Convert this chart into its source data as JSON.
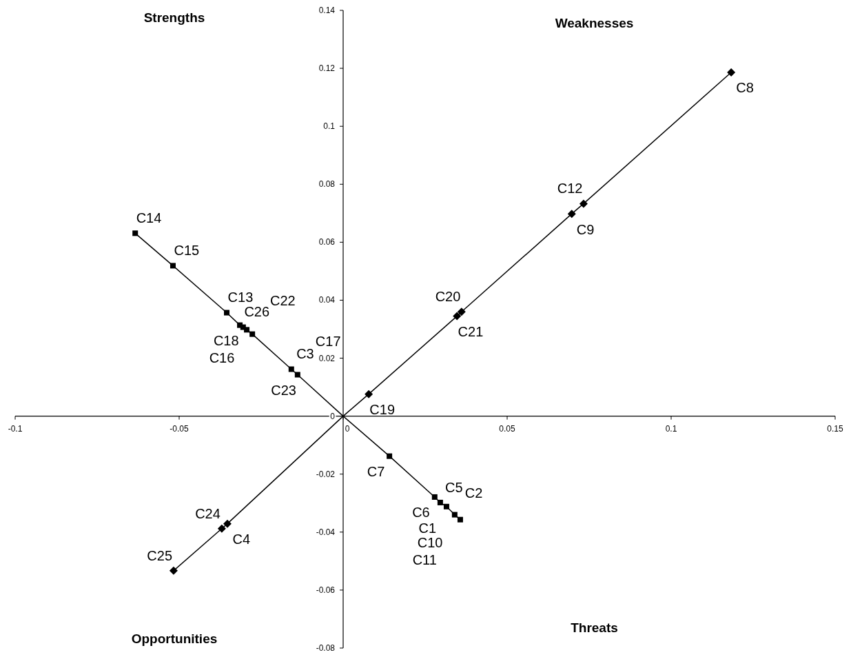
{
  "chart_data": {
    "type": "line",
    "xlim": [
      -0.1,
      0.15
    ],
    "ylim": [
      -0.08,
      0.14
    ],
    "xticks": [
      -0.1,
      -0.05,
      0,
      0.05,
      0.1,
      0.15
    ],
    "yticks": [
      -0.08,
      -0.06,
      -0.04,
      -0.02,
      0,
      0.02,
      0.04,
      0.06,
      0.08,
      0.1,
      0.12,
      0.14
    ],
    "grid": false,
    "line_style": "solid",
    "series": [
      {
        "color": "#000000",
        "marker": "square",
        "x": [
          -0.0634,
          -0.0519,
          -0.0355,
          -0.0315,
          -0.0305,
          -0.0294,
          -0.0277,
          -0.0158,
          -0.0139,
          0,
          0.0141,
          0.0279,
          0.0296,
          0.0315,
          0.034,
          0.0357
        ],
        "values": [
          0.0631,
          0.0519,
          0.0357,
          0.0314,
          0.0307,
          0.0298,
          0.0283,
          0.0162,
          0.0143,
          0,
          -0.0138,
          -0.0279,
          -0.0298,
          -0.0312,
          -0.034,
          -0.0357
        ]
      },
      {
        "color": "#000000",
        "marker": "diamond",
        "x": [
          -0.0517,
          -0.037,
          -0.0353,
          0,
          0.0078,
          0.0347,
          0.0361,
          0.0697,
          0.0733,
          0.1183
        ],
        "values": [
          -0.0533,
          -0.0388,
          -0.0371,
          0,
          0.0076,
          0.0345,
          0.036,
          0.0698,
          0.0733,
          0.1186
        ]
      }
    ],
    "annotations": [
      "Strengths",
      "Weaknesses",
      "Opportunities",
      "Threats",
      {
        "text": "C14",
        "x": -0.0634,
        "y": 0.0631
      },
      {
        "text": "C15",
        "x": -0.0519,
        "y": 0.0519
      },
      {
        "text": "C13",
        "x": -0.0355,
        "y": 0.0357
      },
      {
        "text": "C18",
        "x": -0.0315,
        "y": 0.0314
      },
      {
        "text": "C26",
        "x": -0.0305,
        "y": 0.0307
      },
      {
        "text": "C16",
        "x": -0.0294,
        "y": 0.0298
      },
      {
        "text": "C22",
        "x": -0.0277,
        "y": 0.0283
      },
      {
        "text": "C3",
        "x": -0.0158,
        "y": 0.0162
      },
      {
        "text": "C23",
        "x": -0.0139,
        "y": 0.0143
      },
      {
        "text": "C17",
        "x": -0.0139,
        "y": 0.0143
      },
      {
        "text": "C19",
        "x": 0.0078,
        "y": 0.0076
      },
      {
        "text": "C21",
        "x": 0.0347,
        "y": 0.0345
      },
      {
        "text": "C20",
        "x": 0.0361,
        "y": 0.036
      },
      {
        "text": "C9",
        "x": 0.0697,
        "y": 0.0698
      },
      {
        "text": "C12",
        "x": 0.0733,
        "y": 0.0733
      },
      {
        "text": "C8",
        "x": 0.1183,
        "y": 0.1186
      },
      {
        "text": "C7",
        "x": 0.0141,
        "y": -0.0138
      },
      {
        "text": "C6",
        "x": 0.0279,
        "y": -0.0279
      },
      {
        "text": "C5",
        "x": 0.0296,
        "y": -0.0298
      },
      {
        "text": "C1",
        "x": 0.0315,
        "y": -0.0312
      },
      {
        "text": "C10",
        "x": 0.034,
        "y": -0.034
      },
      {
        "text": "C2",
        "x": 0.034,
        "y": -0.034
      },
      {
        "text": "C11",
        "x": 0.0357,
        "y": -0.0357
      },
      {
        "text": "C24",
        "x": -0.037,
        "y": -0.0388
      },
      {
        "text": "C4",
        "x": -0.0353,
        "y": -0.0371
      },
      {
        "text": "C25",
        "x": -0.0517,
        "y": -0.0533
      }
    ]
  }
}
